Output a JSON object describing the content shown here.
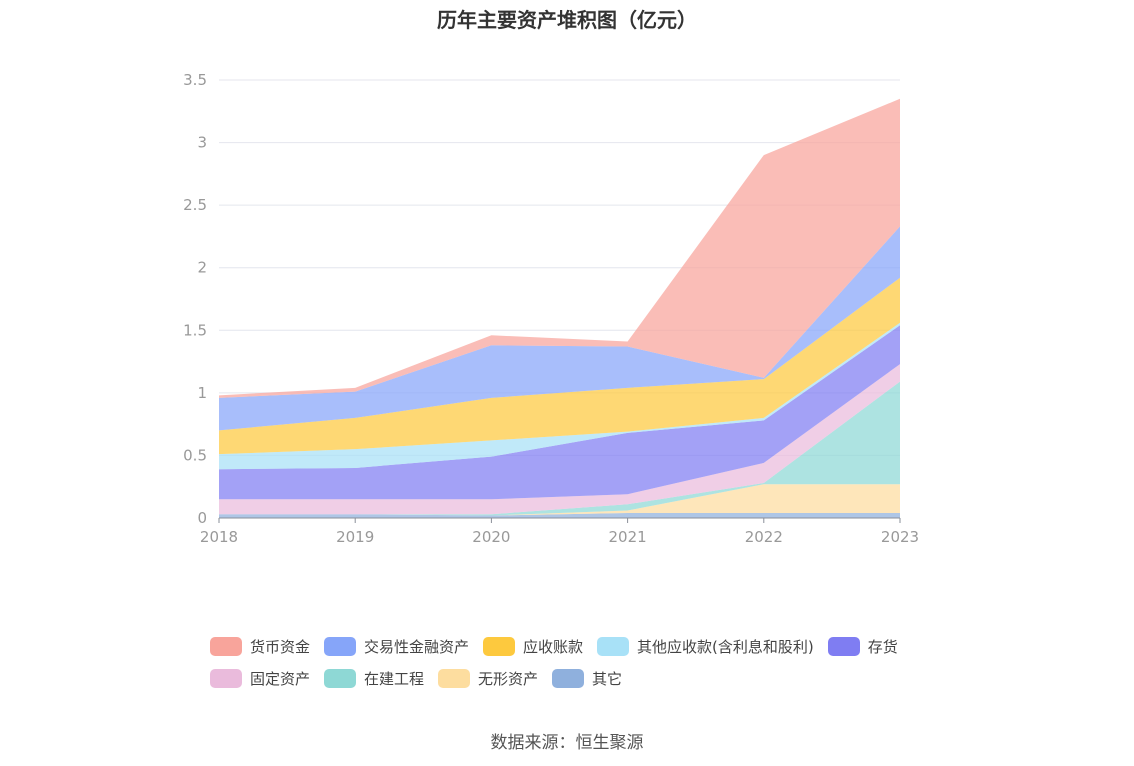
{
  "chart_data": {
    "type": "area",
    "title": "历年主要资产堆积图（亿元）",
    "categories": [
      "2018",
      "2019",
      "2020",
      "2021",
      "2022",
      "2023"
    ],
    "ylim": [
      0,
      3.5
    ],
    "yticks": [
      "0",
      "0.5",
      "1",
      "1.5",
      "2",
      "2.5",
      "3",
      "3.5"
    ],
    "grid": true,
    "stacked": true,
    "legend_position": "bottom",
    "series": [
      {
        "name": "其它",
        "color": "#8fb0dd",
        "values": [
          0.03,
          0.03,
          0.02,
          0.04,
          0.04,
          0.04
        ]
      },
      {
        "name": "无形资产",
        "color": "#fddd9f",
        "values": [
          0.0,
          0.0,
          0.0,
          0.02,
          0.23,
          0.23
        ]
      },
      {
        "name": "在建工程",
        "color": "#8ed8d5",
        "values": [
          0.0,
          0.0,
          0.01,
          0.05,
          0.01,
          0.82
        ]
      },
      {
        "name": "固定资产",
        "color": "#eabbdc",
        "values": [
          0.12,
          0.12,
          0.12,
          0.08,
          0.16,
          0.14
        ]
      },
      {
        "name": "存货",
        "color": "#7f7df2",
        "values": [
          0.24,
          0.25,
          0.34,
          0.49,
          0.34,
          0.31
        ]
      },
      {
        "name": "其他应收款(含利息和股利)",
        "color": "#a8e1f7",
        "values": [
          0.12,
          0.15,
          0.13,
          0.01,
          0.02,
          0.02
        ]
      },
      {
        "name": "应收账款",
        "color": "#fdc93e",
        "values": [
          0.19,
          0.25,
          0.34,
          0.35,
          0.31,
          0.36
        ]
      },
      {
        "name": "交易性金融资产",
        "color": "#86a5f9",
        "values": [
          0.26,
          0.21,
          0.42,
          0.33,
          0.01,
          0.41
        ]
      },
      {
        "name": "货币资金",
        "color": "#f8a49b",
        "values": [
          0.02,
          0.03,
          0.08,
          0.04,
          1.78,
          1.02
        ]
      }
    ]
  },
  "legend": {
    "row1": [
      {
        "label": "货币资金",
        "color": "#f8a49b"
      },
      {
        "label": "交易性金融资产",
        "color": "#86a5f9"
      },
      {
        "label": "应收账款",
        "color": "#fdc93e"
      },
      {
        "label": "其他应收款(含利息和股利)",
        "color": "#a8e1f7"
      },
      {
        "label": "存货",
        "color": "#7f7df2"
      }
    ],
    "row2": [
      {
        "label": "固定资产",
        "color": "#eabbdc"
      },
      {
        "label": "在建工程",
        "color": "#8ed8d5"
      },
      {
        "label": "无形资产",
        "color": "#fddd9f"
      },
      {
        "label": "其它",
        "color": "#8fb0dd"
      }
    ]
  },
  "source": "数据来源：恒生聚源"
}
